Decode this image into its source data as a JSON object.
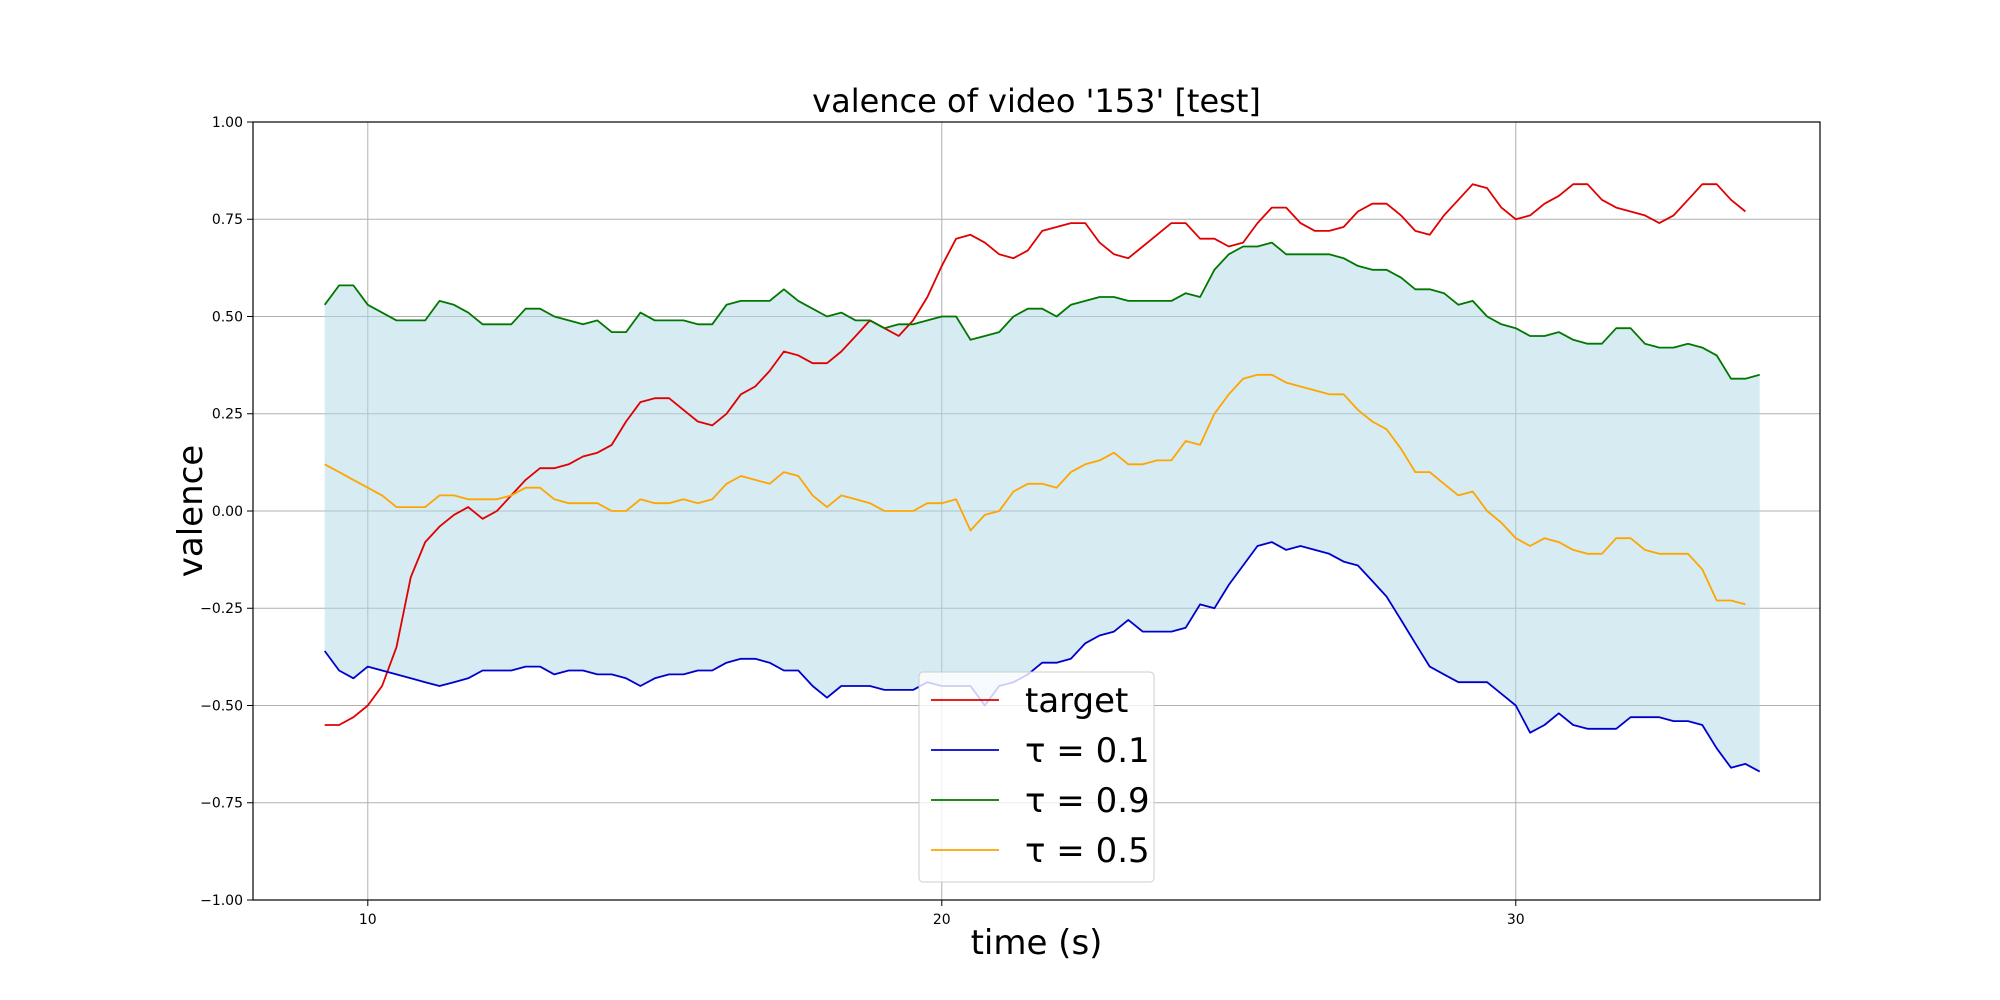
{
  "chart_data": {
    "type": "line",
    "title": "valence of video '153' [test]",
    "xlabel": "time (s)",
    "ylabel": "valence",
    "xlim": [
      8,
      35.3
    ],
    "ylim": [
      -1.0,
      1.0
    ],
    "x_start": 9.25,
    "x_step": 0.25,
    "xticks": [
      10,
      20,
      30
    ],
    "xtick_labels": [
      "10",
      "20",
      "30"
    ],
    "yticks": [
      -1.0,
      -0.75,
      -0.5,
      -0.25,
      0.0,
      0.25,
      0.5,
      0.75,
      1.0
    ],
    "ytick_labels": [
      "−1.00",
      "−0.75",
      "−0.50",
      "−0.25",
      "0.00",
      "0.25",
      "0.50",
      "0.75",
      "1.00"
    ],
    "grid": true,
    "legend_position": "bottom-center",
    "band": {
      "between": [
        "τ = 0.1",
        "τ = 0.9"
      ],
      "color": "#add8e6",
      "opacity": 0.5
    },
    "series": [
      {
        "name": "target",
        "color": "#e00000",
        "values": [
          -0.55,
          -0.55,
          -0.53,
          -0.5,
          -0.45,
          -0.35,
          -0.17,
          -0.08,
          -0.04,
          -0.01,
          0.01,
          -0.02,
          0.0,
          0.04,
          0.08,
          0.11,
          0.11,
          0.12,
          0.14,
          0.15,
          0.17,
          0.23,
          0.28,
          0.29,
          0.29,
          0.26,
          0.23,
          0.22,
          0.25,
          0.3,
          0.32,
          0.36,
          0.41,
          0.4,
          0.38,
          0.38,
          0.41,
          0.45,
          0.49,
          0.47,
          0.45,
          0.49,
          0.55,
          0.63,
          0.7,
          0.71,
          0.69,
          0.66,
          0.65,
          0.67,
          0.72,
          0.73,
          0.74,
          0.74,
          0.69,
          0.66,
          0.65,
          0.68,
          0.71,
          0.74,
          0.74,
          0.7,
          0.7,
          0.68,
          0.69,
          0.74,
          0.78,
          0.78,
          0.74,
          0.72,
          0.72,
          0.73,
          0.77,
          0.79,
          0.79,
          0.76,
          0.72,
          0.71,
          0.76,
          0.8,
          0.84,
          0.83,
          0.78,
          0.75,
          0.76,
          0.79,
          0.81,
          0.84,
          0.84,
          0.8,
          0.78,
          0.77,
          0.76,
          0.74,
          0.76,
          0.8,
          0.84,
          0.84,
          0.8,
          0.77
        ]
      },
      {
        "name": "τ = 0.1",
        "color": "#0000cc",
        "values": [
          -0.36,
          -0.41,
          -0.43,
          -0.4,
          -0.41,
          -0.42,
          -0.43,
          -0.44,
          -0.45,
          -0.44,
          -0.43,
          -0.41,
          -0.41,
          -0.41,
          -0.4,
          -0.4,
          -0.42,
          -0.41,
          -0.41,
          -0.42,
          -0.42,
          -0.43,
          -0.45,
          -0.43,
          -0.42,
          -0.42,
          -0.41,
          -0.41,
          -0.39,
          -0.38,
          -0.38,
          -0.39,
          -0.41,
          -0.41,
          -0.45,
          -0.48,
          -0.45,
          -0.45,
          -0.45,
          -0.46,
          -0.46,
          -0.46,
          -0.44,
          -0.45,
          -0.45,
          -0.45,
          -0.5,
          -0.45,
          -0.44,
          -0.42,
          -0.39,
          -0.39,
          -0.38,
          -0.34,
          -0.32,
          -0.31,
          -0.28,
          -0.31,
          -0.31,
          -0.31,
          -0.3,
          -0.24,
          -0.25,
          -0.19,
          -0.14,
          -0.09,
          -0.08,
          -0.1,
          -0.09,
          -0.1,
          -0.11,
          -0.13,
          -0.14,
          -0.18,
          -0.22,
          -0.28,
          -0.34,
          -0.4,
          -0.42,
          -0.44,
          -0.44,
          -0.44,
          -0.47,
          -0.5,
          -0.57,
          -0.55,
          -0.52,
          -0.55,
          -0.56,
          -0.56,
          -0.56,
          -0.53,
          -0.53,
          -0.53,
          -0.54,
          -0.54,
          -0.55,
          -0.61,
          -0.66,
          -0.65,
          -0.67
        ]
      },
      {
        "name": "τ = 0.9",
        "color": "#007700",
        "values": [
          0.53,
          0.58,
          0.58,
          0.53,
          0.51,
          0.49,
          0.49,
          0.49,
          0.54,
          0.53,
          0.51,
          0.48,
          0.48,
          0.48,
          0.52,
          0.52,
          0.5,
          0.49,
          0.48,
          0.49,
          0.46,
          0.46,
          0.51,
          0.49,
          0.49,
          0.49,
          0.48,
          0.48,
          0.53,
          0.54,
          0.54,
          0.54,
          0.57,
          0.54,
          0.52,
          0.5,
          0.51,
          0.49,
          0.49,
          0.47,
          0.48,
          0.48,
          0.49,
          0.5,
          0.5,
          0.44,
          0.45,
          0.46,
          0.5,
          0.52,
          0.52,
          0.5,
          0.53,
          0.54,
          0.55,
          0.55,
          0.54,
          0.54,
          0.54,
          0.54,
          0.56,
          0.55,
          0.62,
          0.66,
          0.68,
          0.68,
          0.69,
          0.66,
          0.66,
          0.66,
          0.66,
          0.65,
          0.63,
          0.62,
          0.62,
          0.6,
          0.57,
          0.57,
          0.56,
          0.53,
          0.54,
          0.5,
          0.48,
          0.47,
          0.45,
          0.45,
          0.46,
          0.44,
          0.43,
          0.43,
          0.47,
          0.47,
          0.43,
          0.42,
          0.42,
          0.43,
          0.42,
          0.4,
          0.34,
          0.34,
          0.35
        ]
      },
      {
        "name": "τ = 0.5",
        "color": "#ffa500",
        "values": [
          0.12,
          0.1,
          0.08,
          0.06,
          0.04,
          0.01,
          0.01,
          0.01,
          0.04,
          0.04,
          0.03,
          0.03,
          0.03,
          0.04,
          0.06,
          0.06,
          0.03,
          0.02,
          0.02,
          0.02,
          0.0,
          0.0,
          0.03,
          0.02,
          0.02,
          0.03,
          0.02,
          0.03,
          0.07,
          0.09,
          0.08,
          0.07,
          0.1,
          0.09,
          0.04,
          0.01,
          0.04,
          0.03,
          0.02,
          0.0,
          0.0,
          0.0,
          0.02,
          0.02,
          0.03,
          -0.05,
          -0.01,
          0.0,
          0.05,
          0.07,
          0.07,
          0.06,
          0.1,
          0.12,
          0.13,
          0.15,
          0.12,
          0.12,
          0.13,
          0.13,
          0.18,
          0.17,
          0.25,
          0.3,
          0.34,
          0.35,
          0.35,
          0.33,
          0.32,
          0.31,
          0.3,
          0.3,
          0.26,
          0.23,
          0.21,
          0.16,
          0.1,
          0.1,
          0.07,
          0.04,
          0.05,
          0.0,
          -0.03,
          -0.07,
          -0.09,
          -0.07,
          -0.08,
          -0.1,
          -0.11,
          -0.11,
          -0.07,
          -0.07,
          -0.1,
          -0.11,
          -0.11,
          -0.11,
          -0.15,
          -0.23,
          -0.23,
          -0.24
        ]
      }
    ]
  }
}
